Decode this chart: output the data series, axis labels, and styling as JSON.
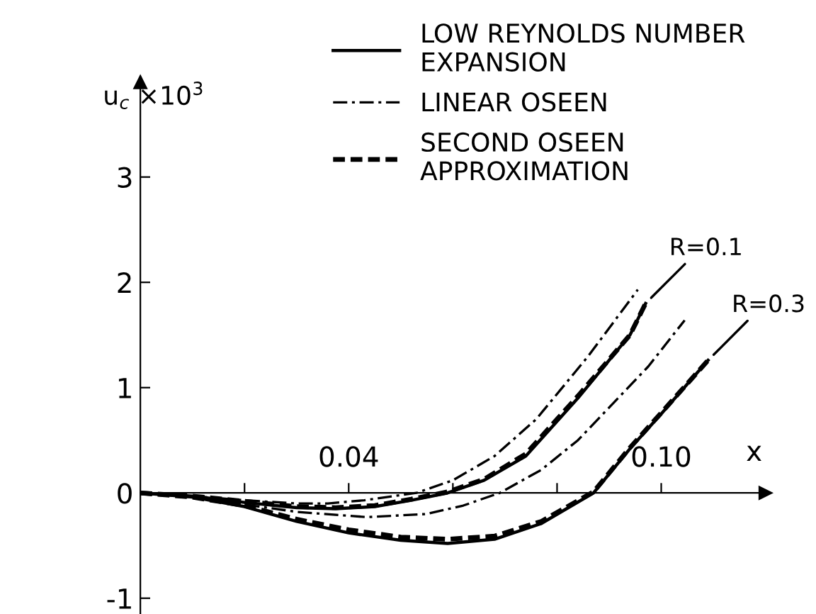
{
  "chart_data": {
    "type": "line",
    "xlabel": "x",
    "ylabel": "u$_{c}$ ×10$^{3}$",
    "xlim": [
      0,
      0.12
    ],
    "ylim": [
      -1.15,
      3.9
    ],
    "xticks": [
      {
        "value": 0.02,
        "label": null
      },
      0.04,
      {
        "value": 0.06,
        "label": null
      },
      {
        "value": 0.08,
        "label": null
      },
      {
        "value": 0.1,
        "label": "0.10"
      }
    ],
    "yticks": [
      -1,
      0,
      1,
      2,
      3
    ],
    "grid": false,
    "legend": "top",
    "marker": "none",
    "annotations": [
      {
        "text": "R=0.1",
        "x": 0.097,
        "y": 1.8
      },
      {
        "text": "R=0.3",
        "x": 0.109,
        "y": 1.26
      }
    ],
    "series": [
      {
        "name": "LOW REYNOLDS NUMBER\nEXPANSION",
        "color": "#000000",
        "line_style": "solid",
        "x": [
          0,
          0.01,
          0.02,
          0.03,
          0.0375,
          0.045,
          0.052,
          0.059,
          0.066,
          0.074,
          0.084,
          0.094,
          0.097
        ],
        "values": [
          0,
          -0.03,
          -0.09,
          -0.14,
          -0.15,
          -0.13,
          -0.07,
          0.0,
          0.12,
          0.35,
          0.9,
          1.5,
          1.8
        ]
      },
      {
        "name": "LINEAR OSEEN",
        "color": "#000000",
        "line_style": "dashdot",
        "x": [
          0,
          0.01,
          0.02,
          0.03,
          0.036,
          0.043,
          0.053,
          0.06,
          0.068,
          0.076,
          0.086,
          0.0955
        ],
        "values": [
          0,
          -0.03,
          -0.07,
          -0.1,
          -0.1,
          -0.07,
          0.0,
          0.12,
          0.35,
          0.7,
          1.3,
          1.93
        ]
      },
      {
        "name": "SECOND OSEEN\nAPPROXIMATION",
        "color": "#000000",
        "line_style": "dashed",
        "x": [
          0,
          0.01,
          0.02,
          0.03,
          0.0375,
          0.045,
          0.052,
          0.059,
          0.066,
          0.074,
          0.084,
          0.094,
          0.097
        ],
        "values": [
          0,
          -0.03,
          -0.08,
          -0.13,
          -0.14,
          -0.12,
          -0.06,
          0.01,
          0.13,
          0.37,
          0.92,
          1.5,
          1.8
        ]
      },
      {
        "color": "#000000",
        "line_style": "solid",
        "x": [
          0,
          0.01,
          0.02,
          0.03,
          0.04,
          0.05,
          0.059,
          0.068,
          0.077,
          0.087,
          0.094,
          0.1,
          0.109
        ],
        "values": [
          0,
          -0.04,
          -0.13,
          -0.27,
          -0.38,
          -0.45,
          -0.48,
          -0.44,
          -0.29,
          0.0,
          0.42,
          0.75,
          1.26
        ]
      },
      {
        "color": "#000000",
        "line_style": "dashdot",
        "x": [
          0,
          0.01,
          0.02,
          0.03,
          0.0435,
          0.055,
          0.062,
          0.069,
          0.077,
          0.084,
          0.0975,
          0.1045
        ],
        "values": [
          0,
          -0.04,
          -0.11,
          -0.18,
          -0.23,
          -0.2,
          -0.12,
          0.0,
          0.22,
          0.5,
          1.2,
          1.64
        ]
      },
      {
        "color": "#000000",
        "line_style": "dashed",
        "x": [
          0,
          0.01,
          0.02,
          0.03,
          0.04,
          0.05,
          0.059,
          0.068,
          0.077,
          0.087,
          0.094,
          0.1,
          0.109
        ],
        "values": [
          0,
          -0.04,
          -0.12,
          -0.25,
          -0.35,
          -0.42,
          -0.44,
          -0.41,
          -0.27,
          0.01,
          0.43,
          0.76,
          1.26
        ]
      }
    ]
  }
}
